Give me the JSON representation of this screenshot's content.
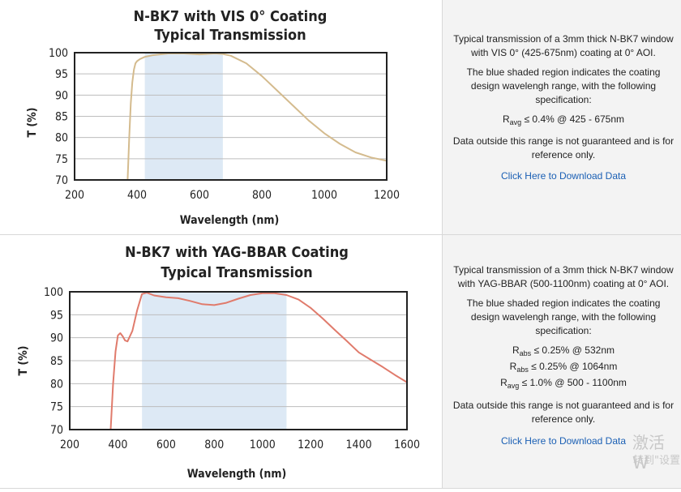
{
  "charts": [
    {
      "title_line1": "N-BK7 with VIS 0° Coating",
      "title_line2": "Typical Transmission",
      "description": "Typical transmission of a 3mm thick N-BK7 window with VIS 0° (425-675nm) coating at 0° AOI.",
      "shaded_note": "The blue shaded region indicates the coating design wavelengh range, with the following specification:",
      "specs": [
        {
          "symbol": "R",
          "sub": "avg",
          "text": "≤ 0.4% @ 425 - 675nm"
        }
      ],
      "disclaimer": "Data outside this range is not guaranteed and is for reference only.",
      "download": "Click Here to Download Data"
    },
    {
      "title_line1": "N-BK7 with YAG-BBAR Coating",
      "title_line2": "Typical Transmission",
      "description": "Typical transmission of a 3mm thick N-BK7 window with YAG-BBAR (500-1100nm) coating at 0° AOI.",
      "shaded_note": "The blue shaded region indicates the coating design wavelengh range, with the following specification:",
      "specs": [
        {
          "symbol": "R",
          "sub": "abs",
          "text": "≤ 0.25% @ 532nm"
        },
        {
          "symbol": "R",
          "sub": "abs",
          "text": "≤ 0.25% @ 1064nm"
        },
        {
          "symbol": "R",
          "sub": "avg",
          "text": "≤ 1.0% @ 500 - 1100nm"
        }
      ],
      "disclaimer": "Data outside this range is not guaranteed and is for reference only.",
      "download": "Click Here to Download Data"
    }
  ],
  "watermark": {
    "line1": "激活 W",
    "line2": "转到\"设置"
  },
  "chart_data": [
    {
      "type": "line",
      "title": "N-BK7 with VIS 0° Coating Typical Transmission",
      "xlabel": "Wavelength (nm)",
      "ylabel": "T (%)",
      "xlim": [
        200,
        1200
      ],
      "ylim": [
        70,
        100
      ],
      "xticks": [
        200,
        400,
        600,
        800,
        1000,
        1200
      ],
      "yticks": [
        70,
        75,
        80,
        85,
        90,
        95,
        100
      ],
      "grid": true,
      "shaded_range": [
        425,
        675
      ],
      "line_color": "#d4bb8e",
      "shade_color": "#dde9f5",
      "series": [
        {
          "x": [
            370,
            375,
            380,
            385,
            390,
            395,
            400,
            410,
            425,
            450,
            500,
            550,
            600,
            650,
            675,
            700,
            750,
            800,
            850,
            900,
            950,
            1000,
            1050,
            1100,
            1150,
            1200
          ],
          "y": [
            70,
            80,
            88,
            93,
            96,
            97.5,
            98,
            98.5,
            99,
            99.4,
            99.8,
            99.8,
            99.6,
            99.8,
            99.7,
            99.3,
            97.5,
            94.5,
            91,
            87.5,
            84,
            81,
            78.5,
            76.5,
            75.3,
            74.5
          ]
        }
      ]
    },
    {
      "type": "line",
      "title": "N-BK7 with YAG-BBAR Coating Typical Transmission",
      "xlabel": "Wavelength (nm)",
      "ylabel": "T (%)",
      "xlim": [
        200,
        1600
      ],
      "ylim": [
        70,
        100
      ],
      "xticks": [
        200,
        400,
        600,
        800,
        1000,
        1200,
        1400,
        1600
      ],
      "yticks": [
        70,
        75,
        80,
        85,
        90,
        95,
        100
      ],
      "grid": true,
      "shaded_range": [
        500,
        1100
      ],
      "line_color": "#e07b6c",
      "shade_color": "#dde9f5",
      "series": [
        {
          "x": [
            370,
            380,
            390,
            400,
            410,
            420,
            430,
            440,
            460,
            480,
            500,
            520,
            550,
            600,
            650,
            700,
            750,
            800,
            850,
            900,
            950,
            1000,
            1050,
            1100,
            1150,
            1200,
            1250,
            1300,
            1350,
            1400,
            1450,
            1500,
            1550,
            1600
          ],
          "y": [
            70,
            80,
            87,
            90.5,
            91,
            90.3,
            89.4,
            89.2,
            91.5,
            96,
            99.5,
            99.8,
            99.2,
            98.8,
            98.6,
            98,
            97.3,
            97.1,
            97.6,
            98.5,
            99.3,
            99.7,
            99.7,
            99.3,
            98.3,
            96.5,
            94.2,
            91.7,
            89.3,
            86.8,
            85.2,
            83.6,
            81.9,
            80.3
          ]
        }
      ]
    }
  ]
}
